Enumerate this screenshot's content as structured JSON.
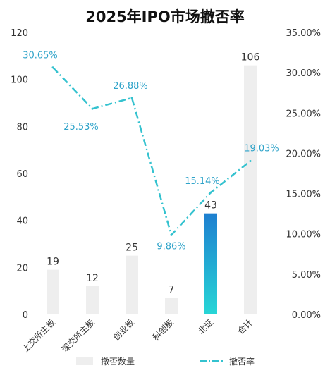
{
  "colors": {
    "bar": "#eeeeee",
    "bar_highlight_top": "#1e7fd0",
    "bar_highlight_bottom": "#27d6d6",
    "line": "#34c2cf",
    "label_line": "#2ea3c9"
  },
  "chart_data": {
    "type": "bar",
    "title": "2025年IPO市场撤否率",
    "categories": [
      "上交所主板",
      "深交所主板",
      "创业板",
      "科创板",
      "北证",
      "合计"
    ],
    "series": [
      {
        "name": "撤否数量",
        "type": "bar",
        "axis": "left",
        "values": [
          19,
          12,
          25,
          7,
          43,
          106
        ],
        "labels": [
          "19",
          "12",
          "25",
          "7",
          "43",
          "106"
        ],
        "highlight_index": 4
      },
      {
        "name": "撤否率",
        "type": "line",
        "axis": "right",
        "values": [
          30.65,
          25.53,
          26.88,
          9.86,
          15.14,
          19.03
        ],
        "labels": [
          "30.65%",
          "25.53%",
          "26.88%",
          "9.86%",
          "15.14%",
          "19.03%"
        ]
      }
    ],
    "y_left": {
      "min": 0,
      "max": 120,
      "ticks": [
        "0",
        "20",
        "40",
        "60",
        "80",
        "100",
        "120"
      ]
    },
    "y_right": {
      "min": 0,
      "max": 35,
      "ticks": [
        "0.00%",
        "5.00%",
        "10.00%",
        "15.00%",
        "20.00%",
        "25.00%",
        "30.00%",
        "35.00%"
      ]
    },
    "legend": {
      "position": "bottom",
      "items": [
        "撤否数量",
        "撤否率"
      ]
    },
    "grid": false
  }
}
